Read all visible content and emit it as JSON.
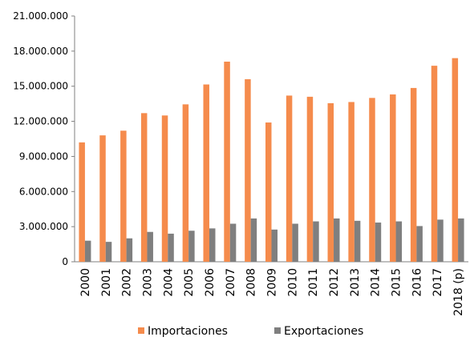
{
  "chart_data": {
    "type": "bar",
    "categories": [
      "2000",
      "2001",
      "2002",
      "2003",
      "2004",
      "2005",
      "2006",
      "2007",
      "2008",
      "2009",
      "2010",
      "2011",
      "2012",
      "2013",
      "2014",
      "2015",
      "2016",
      "2017",
      "2018 (p)"
    ],
    "series": [
      {
        "name": "Importaciones",
        "color": "#f58b4c",
        "values": [
          10200000,
          10800000,
          11200000,
          12700000,
          12500000,
          13450000,
          15150000,
          17100000,
          15600000,
          11900000,
          14200000,
          14100000,
          13550000,
          13650000,
          14000000,
          14300000,
          14850000,
          16750000,
          17400000
        ]
      },
      {
        "name": "Exportaciones",
        "color": "#7f7f7f",
        "values": [
          1800000,
          1700000,
          2000000,
          2550000,
          2400000,
          2650000,
          2850000,
          3250000,
          3700000,
          2750000,
          3250000,
          3450000,
          3700000,
          3500000,
          3350000,
          3450000,
          3050000,
          3600000,
          3700000
        ]
      }
    ],
    "ylim": [
      0,
      21000000
    ],
    "yticks": [
      0,
      {
        "value": 3000000,
        "label": "3.000.000"
      },
      {
        "value": 6000000,
        "label": "6.000.000"
      },
      {
        "value": 9000000,
        "label": "9.000.000"
      },
      {
        "value": 12000000,
        "label": "12.000.000"
      },
      {
        "value": 15000000,
        "label": "15.000.000"
      },
      {
        "value": 18000000,
        "label": "18.000.000"
      },
      {
        "value": 21000000,
        "label": "21.000.000"
      }
    ],
    "grid": false,
    "legend": "bottom"
  }
}
